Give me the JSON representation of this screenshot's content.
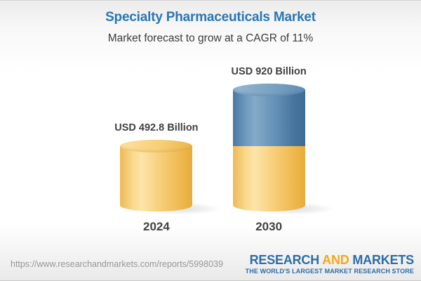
{
  "header": {
    "title": "Specialty Pharmaceuticals Market",
    "subtitle": "Market forecast to grow at a CAGR of 11%"
  },
  "chart_data": {
    "type": "bar",
    "subtype": "3d-cylinder-infographic",
    "categories": [
      "2024",
      "2030"
    ],
    "values": [
      492.8,
      920
    ],
    "unit": "USD Billion",
    "value_labels": [
      "USD 492.8 Billion",
      "USD 920 Billion"
    ],
    "title": "Specialty Pharmaceuticals Market",
    "annotation": "Market forecast to grow at a CAGR of 11%",
    "cagr_percent": 11,
    "ylim": [
      0,
      920
    ],
    "legend": "none",
    "grid": "off",
    "notes": "2030 cylinder is stacked: yellow base equals 2024 value, blue top is forecast growth",
    "colors": {
      "bar_2024": "#f6ca70",
      "bar_2030_growth": "#5f8db3",
      "bar_2030_base": "#f6ca70",
      "title_accent": "#2a76b6",
      "label_text": "#414042"
    }
  },
  "footer": {
    "url": "https://www.researchandmarkets.com/reports/5998039",
    "logo": {
      "part1": "RESEARCH",
      "part2": "AND",
      "part3": "MARKETS",
      "tagline": "THE WORLD'S LARGEST MARKET RESEARCH STORE",
      "blue": "#2c6da6",
      "orange": "#f5a81c"
    }
  }
}
